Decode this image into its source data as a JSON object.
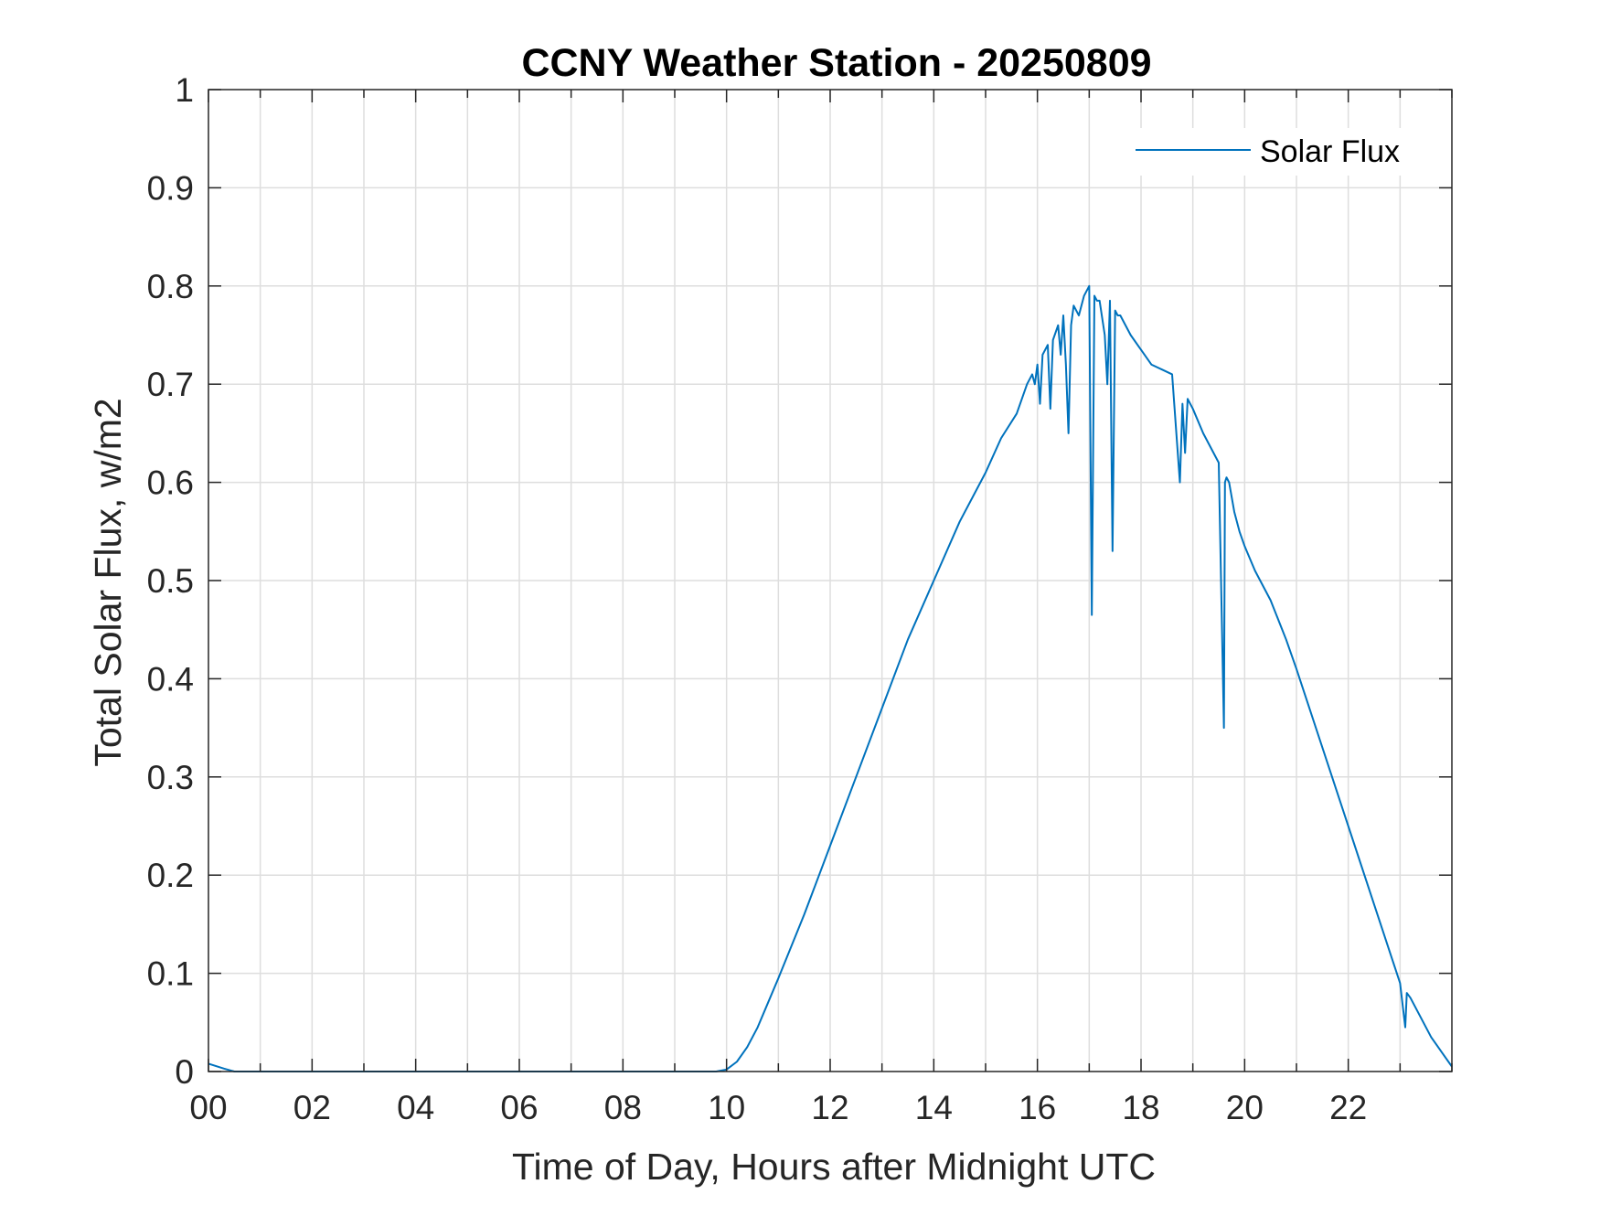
{
  "chart_data": {
    "type": "line",
    "title": "CCNY Weather Station - 20250809",
    "xlabel": "Time of Day, Hours after Midnight UTC",
    "ylabel": "Total Solar Flux, w/m2",
    "xlim": [
      0,
      24
    ],
    "ylim": [
      0,
      1
    ],
    "xticks": [
      0,
      2,
      4,
      6,
      8,
      10,
      12,
      14,
      16,
      18,
      20,
      22
    ],
    "xtick_labels": [
      "00",
      "02",
      "04",
      "06",
      "08",
      "10",
      "12",
      "14",
      "16",
      "18",
      "20",
      "22"
    ],
    "yticks": [
      0,
      0.1,
      0.2,
      0.3,
      0.4,
      0.5,
      0.6,
      0.7,
      0.8,
      0.9,
      1
    ],
    "ytick_labels": [
      "0",
      "0.1",
      "0.2",
      "0.3",
      "0.4",
      "0.5",
      "0.6",
      "0.7",
      "0.8",
      "0.9",
      "1"
    ],
    "grid": true,
    "legend_position": "top-right",
    "series": [
      {
        "name": "Solar Flux",
        "color": "#0072BD",
        "x": [
          0,
          0.3,
          0.5,
          1,
          2,
          3,
          4,
          5,
          6,
          7,
          8,
          9,
          9.8,
          10.0,
          10.2,
          10.4,
          10.6,
          10.8,
          11.0,
          11.5,
          12.0,
          12.5,
          13.0,
          13.5,
          14.0,
          14.5,
          15.0,
          15.3,
          15.6,
          15.7,
          15.8,
          15.9,
          15.95,
          16.0,
          16.05,
          16.1,
          16.2,
          16.25,
          16.3,
          16.4,
          16.45,
          16.5,
          16.55,
          16.6,
          16.65,
          16.7,
          16.8,
          16.9,
          17.0,
          17.05,
          17.1,
          17.15,
          17.2,
          17.3,
          17.35,
          17.4,
          17.45,
          17.5,
          17.55,
          17.6,
          17.7,
          17.8,
          18.0,
          18.2,
          18.4,
          18.6,
          18.75,
          18.8,
          18.85,
          18.9,
          18.95,
          19.0,
          19.2,
          19.4,
          19.5,
          19.6,
          19.62,
          19.65,
          19.7,
          19.8,
          19.9,
          20.0,
          20.2,
          20.3,
          20.4,
          20.5,
          20.8,
          21.0,
          21.5,
          22.0,
          22.5,
          23.0,
          23.1,
          23.13,
          23.2,
          23.4,
          23.6,
          23.8,
          24.0
        ],
        "y": [
          0.008,
          0.003,
          0,
          0,
          0,
          0,
          0,
          0,
          0,
          0,
          0,
          0,
          0,
          0.002,
          0.01,
          0.025,
          0.045,
          0.07,
          0.095,
          0.16,
          0.23,
          0.3,
          0.37,
          0.44,
          0.5,
          0.56,
          0.61,
          0.645,
          0.67,
          0.685,
          0.7,
          0.71,
          0.7,
          0.72,
          0.68,
          0.73,
          0.74,
          0.675,
          0.745,
          0.76,
          0.73,
          0.77,
          0.72,
          0.65,
          0.76,
          0.78,
          0.77,
          0.79,
          0.8,
          0.465,
          0.79,
          0.785,
          0.785,
          0.75,
          0.7,
          0.785,
          0.53,
          0.775,
          0.77,
          0.77,
          0.76,
          0.75,
          0.735,
          0.72,
          0.715,
          0.71,
          0.6,
          0.68,
          0.63,
          0.685,
          0.68,
          0.675,
          0.65,
          0.63,
          0.62,
          0.35,
          0.6,
          0.605,
          0.6,
          0.57,
          0.55,
          0.535,
          0.51,
          0.5,
          0.49,
          0.48,
          0.44,
          0.41,
          0.33,
          0.25,
          0.17,
          0.09,
          0.045,
          0.08,
          0.075,
          0.055,
          0.035,
          0.02,
          0.005
        ]
      }
    ]
  }
}
